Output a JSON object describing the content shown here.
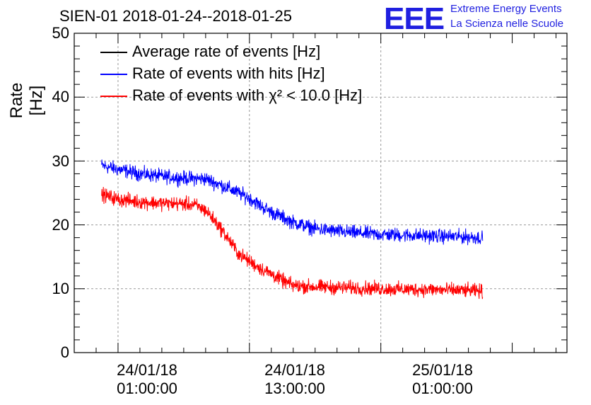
{
  "chart_data": {
    "type": "line",
    "title": "SIEN-01 2018-01-24--2018-01-25",
    "xlabel": "",
    "ylabel": "Rate [Hz]",
    "ylim": [
      0,
      50
    ],
    "yticks": [
      "0",
      "10",
      "20",
      "30",
      "40",
      "50"
    ],
    "xlim_hours_from_2018_01_24_00": [
      -3.0,
      42.0
    ],
    "xticks": [
      {
        "hour": 1,
        "line1": "24/01/18",
        "line2": "01:00:00"
      },
      {
        "hour": 13,
        "line1": "24/01/18",
        "line2": "13:00:00"
      },
      {
        "hour": 25,
        "line1": "25/01/18",
        "line2": "01:00:00"
      }
    ],
    "grid": true,
    "legend_position": "top-left",
    "series": [
      {
        "name": "Average rate of events [Hz]",
        "color": "#000000",
        "x_hours": [],
        "values": []
      },
      {
        "name": "Rate of events with hits [Hz]",
        "color": "#0000ff",
        "x_hours": [
          -0.5,
          1,
          3,
          5,
          7,
          9,
          10,
          11,
          12,
          13,
          14,
          15,
          17,
          19,
          21,
          23,
          25,
          27,
          29,
          31,
          33,
          34.3
        ],
        "values": [
          29.3,
          28.7,
          28.0,
          27.6,
          27.3,
          27.2,
          26.5,
          25.8,
          25.0,
          24.2,
          23.0,
          22.0,
          20.4,
          19.4,
          19.0,
          18.7,
          18.5,
          18.4,
          18.3,
          18.2,
          18.1,
          18.0
        ]
      },
      {
        "name": "Rate of events with χ² < 10.0 [Hz]",
        "color": "#ff0000",
        "x_hours": [
          -0.5,
          1,
          3,
          5,
          7,
          8,
          9,
          10,
          11,
          12,
          13,
          14,
          15,
          16,
          17,
          19,
          21,
          23,
          25,
          27,
          29,
          31,
          33,
          34.3
        ],
        "values": [
          24.8,
          24.0,
          23.6,
          23.4,
          23.3,
          23.1,
          22.3,
          20.3,
          18.0,
          15.5,
          14.3,
          13.2,
          12.3,
          11.3,
          10.5,
          10.3,
          10.2,
          10.1,
          10.0,
          9.9,
          9.9,
          9.8,
          9.7,
          9.6
        ]
      }
    ]
  },
  "logo": {
    "mark": "EEE",
    "line1": "Extreme Energy Events",
    "line2": "La Scienza nelle Scuole"
  }
}
